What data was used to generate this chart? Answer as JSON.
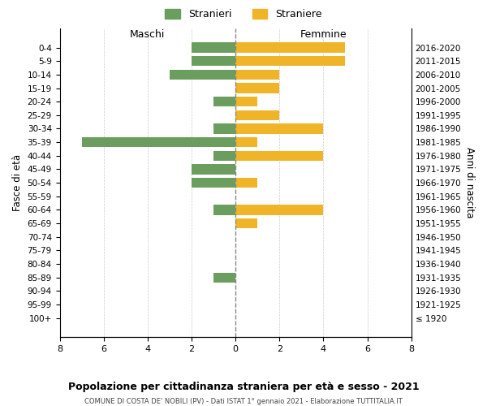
{
  "age_groups": [
    "100+",
    "95-99",
    "90-94",
    "85-89",
    "80-84",
    "75-79",
    "70-74",
    "65-69",
    "60-64",
    "55-59",
    "50-54",
    "45-49",
    "40-44",
    "35-39",
    "30-34",
    "25-29",
    "20-24",
    "15-19",
    "10-14",
    "5-9",
    "0-4"
  ],
  "birth_years": [
    "≤ 1920",
    "1921-1925",
    "1926-1930",
    "1931-1935",
    "1936-1940",
    "1941-1945",
    "1946-1950",
    "1951-1955",
    "1956-1960",
    "1961-1965",
    "1966-1970",
    "1971-1975",
    "1976-1980",
    "1981-1985",
    "1986-1990",
    "1991-1995",
    "1996-2000",
    "2001-2005",
    "2006-2010",
    "2011-2015",
    "2016-2020"
  ],
  "males": [
    0,
    0,
    0,
    1,
    0,
    0,
    0,
    0,
    1,
    0,
    2,
    2,
    1,
    7,
    1,
    0,
    1,
    0,
    3,
    2,
    2
  ],
  "females": [
    0,
    0,
    0,
    0,
    0,
    0,
    0,
    1,
    4,
    0,
    1,
    0,
    4,
    1,
    4,
    2,
    1,
    2,
    2,
    5,
    5
  ],
  "male_color": "#6b9e5e",
  "female_color": "#f0b429",
  "background_color": "#ffffff",
  "grid_color": "#cccccc",
  "center_line_color": "#888888",
  "title": "Popolazione per cittadinanza straniera per età e sesso - 2021",
  "subtitle": "COMUNE DI COSTA DE' NOBILI (PV) - Dati ISTAT 1° gennaio 2021 - Elaborazione TUTTITALIA.IT",
  "ylabel_left": "Fasce di età",
  "ylabel_right": "Anni di nascita",
  "xlabel_left": "Maschi",
  "xlabel_right": "Femmine",
  "legend_male": "Stranieri",
  "legend_female": "Straniere",
  "xlim": 8
}
